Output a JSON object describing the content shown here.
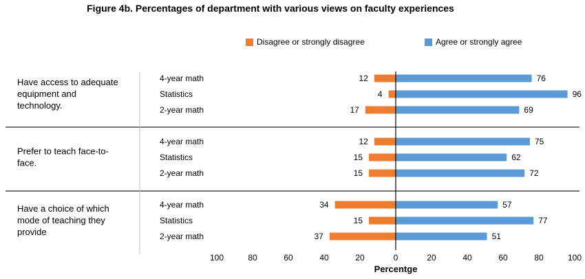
{
  "chart_data": {
    "type": "bar",
    "title": "Figure 4b. Percentages of department with various views on faculty experiences",
    "xlabel": "Percentge",
    "xlim": [
      -100,
      100
    ],
    "x_tick_labels": [
      "100",
      "80",
      "60",
      "40",
      "20",
      "0",
      "20",
      "40",
      "60",
      "80",
      "100"
    ],
    "legend_position": "top",
    "series_names": [
      "Disagree or strongly disagree",
      "Agree or strongly agree"
    ],
    "colors": {
      "disagree": "#ED7D31",
      "agree": "#5B9BD5"
    },
    "groups": [
      {
        "label": "Have access to adequate equipment and technology.",
        "label_lines": [
          "Have access to adequate",
          "equipment and",
          "technology."
        ],
        "rows": [
          {
            "label": "4-year math",
            "disagree": 12,
            "agree": 76
          },
          {
            "label": "Statistics",
            "disagree": 4,
            "agree": 96
          },
          {
            "label": "2-year math",
            "disagree": 17,
            "agree": 69
          }
        ]
      },
      {
        "label": "Prefer to teach face-to-face.",
        "label_lines": [
          "Prefer to teach face-to-",
          "face."
        ],
        "rows": [
          {
            "label": "4-year math",
            "disagree": 12,
            "agree": 75
          },
          {
            "label": "Statistics",
            "disagree": 15,
            "agree": 62
          },
          {
            "label": "2-year math",
            "disagree": 15,
            "agree": 72
          }
        ]
      },
      {
        "label": "Have a choice of which mode of teaching they provide",
        "label_lines": [
          "Have a choice of which",
          "mode of teaching they",
          "provide"
        ],
        "rows": [
          {
            "label": "4-year math",
            "disagree": 34,
            "agree": 57
          },
          {
            "label": "Statistics",
            "disagree": 15,
            "agree": 77
          },
          {
            "label": "2-year math",
            "disagree": 37,
            "agree": 51
          }
        ]
      }
    ]
  }
}
